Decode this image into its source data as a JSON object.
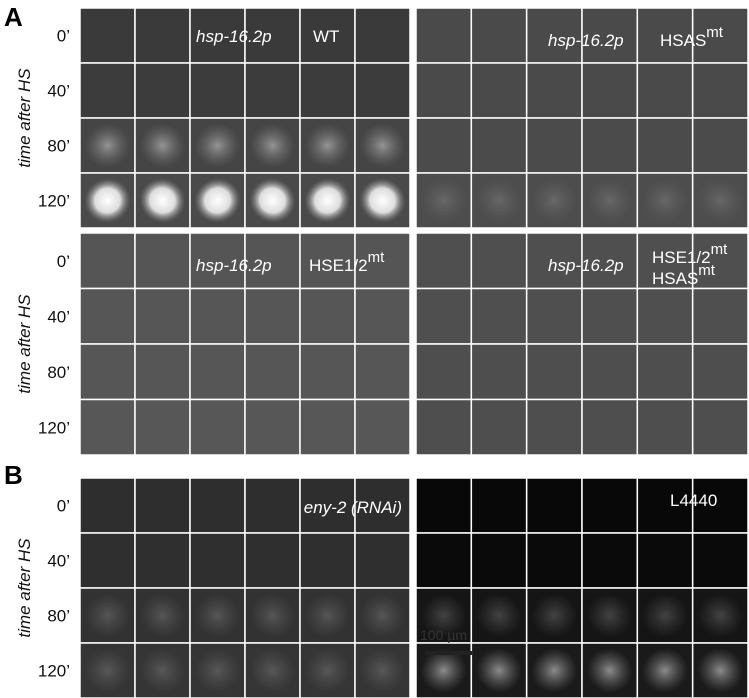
{
  "panel_a": {
    "label": "A",
    "time_axis_label": "time after HS",
    "time_points": [
      "0’",
      "40’",
      "80’",
      "120’"
    ],
    "grids": [
      {
        "promoter": "hsp-16.2p",
        "lines": [
          {
            "text": "WT"
          }
        ]
      },
      {
        "promoter": "hsp-16.2p",
        "lines": [
          {
            "text": "HSAS",
            "superscript": "mt"
          }
        ]
      },
      {
        "promoter": "hsp-16.2p",
        "lines": [
          {
            "text": "HSE1/2",
            "superscript": "mt"
          }
        ]
      },
      {
        "promoter": "hsp-16.2p",
        "lines": [
          {
            "text": "HSE1/2",
            "superscript": "mt"
          },
          {
            "text": "HSAS",
            "superscript": "mt"
          }
        ]
      }
    ]
  },
  "panel_b": {
    "label": "B",
    "time_axis_label": "time after HS",
    "time_points": [
      "0’",
      "40’",
      "80’",
      "120’"
    ],
    "grids": [
      {
        "condition": "eny-2 (RNAi)"
      },
      {
        "condition": "L4440"
      }
    ],
    "scale_bar": "100 µm"
  }
}
